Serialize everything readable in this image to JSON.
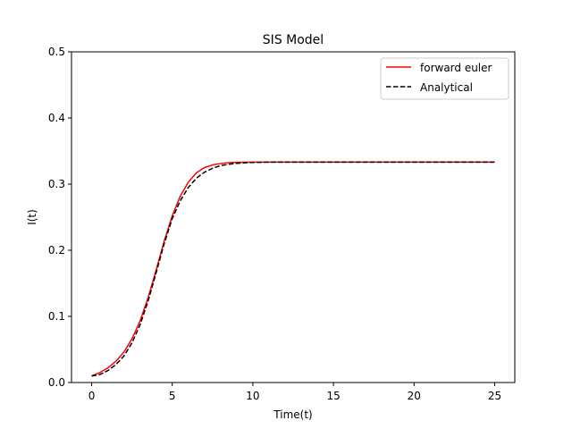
{
  "chart_data": {
    "type": "line",
    "title": "SIS Model",
    "xlabel": "Time(t)",
    "ylabel": "I(t)",
    "xlim": [
      -1.25,
      26.25
    ],
    "ylim": [
      0,
      0.5
    ],
    "xticks": [
      0,
      5,
      10,
      15,
      20,
      25
    ],
    "yticks": [
      0.0,
      0.1,
      0.2,
      0.3,
      0.4,
      0.5
    ],
    "xtick_labels": [
      "0",
      "5",
      "10",
      "15",
      "20",
      "25"
    ],
    "ytick_labels": [
      "0.0",
      "0.1",
      "0.2",
      "0.3",
      "0.4",
      "0.5"
    ],
    "grid": false,
    "legend_position": "top-right",
    "series": [
      {
        "name": "forward euler",
        "color": "#ff0000",
        "style": "solid",
        "x": [
          0,
          0.5,
          1,
          1.5,
          2,
          2.5,
          3,
          3.5,
          4,
          4.5,
          5,
          5.5,
          6,
          6.5,
          7,
          7.5,
          8,
          8.5,
          9,
          10,
          11,
          12,
          14,
          16,
          18,
          20,
          22,
          24,
          25
        ],
        "y": [
          0.01,
          0.015,
          0.022,
          0.032,
          0.046,
          0.066,
          0.093,
          0.128,
          0.17,
          0.214,
          0.252,
          0.282,
          0.303,
          0.317,
          0.325,
          0.329,
          0.331,
          0.3325,
          0.333,
          0.3333,
          0.3333,
          0.3333,
          0.3333,
          0.3333,
          0.3333,
          0.3333,
          0.3333,
          0.3333,
          0.3333
        ]
      },
      {
        "name": "Analytical",
        "color": "#000000",
        "style": "dashed",
        "x": [
          0,
          0.5,
          1,
          1.5,
          2,
          2.5,
          3,
          3.5,
          4,
          4.5,
          5,
          5.5,
          6,
          6.5,
          7,
          7.5,
          8,
          8.5,
          9,
          10,
          11,
          12,
          14,
          16,
          18,
          20,
          22,
          24,
          25
        ],
        "y": [
          0.01,
          0.012,
          0.018,
          0.027,
          0.04,
          0.06,
          0.087,
          0.123,
          0.166,
          0.21,
          0.248,
          0.275,
          0.295,
          0.309,
          0.318,
          0.324,
          0.328,
          0.33,
          0.3315,
          0.3328,
          0.3332,
          0.3333,
          0.3333,
          0.3333,
          0.3333,
          0.3333,
          0.3333,
          0.3333,
          0.3333
        ]
      }
    ]
  }
}
